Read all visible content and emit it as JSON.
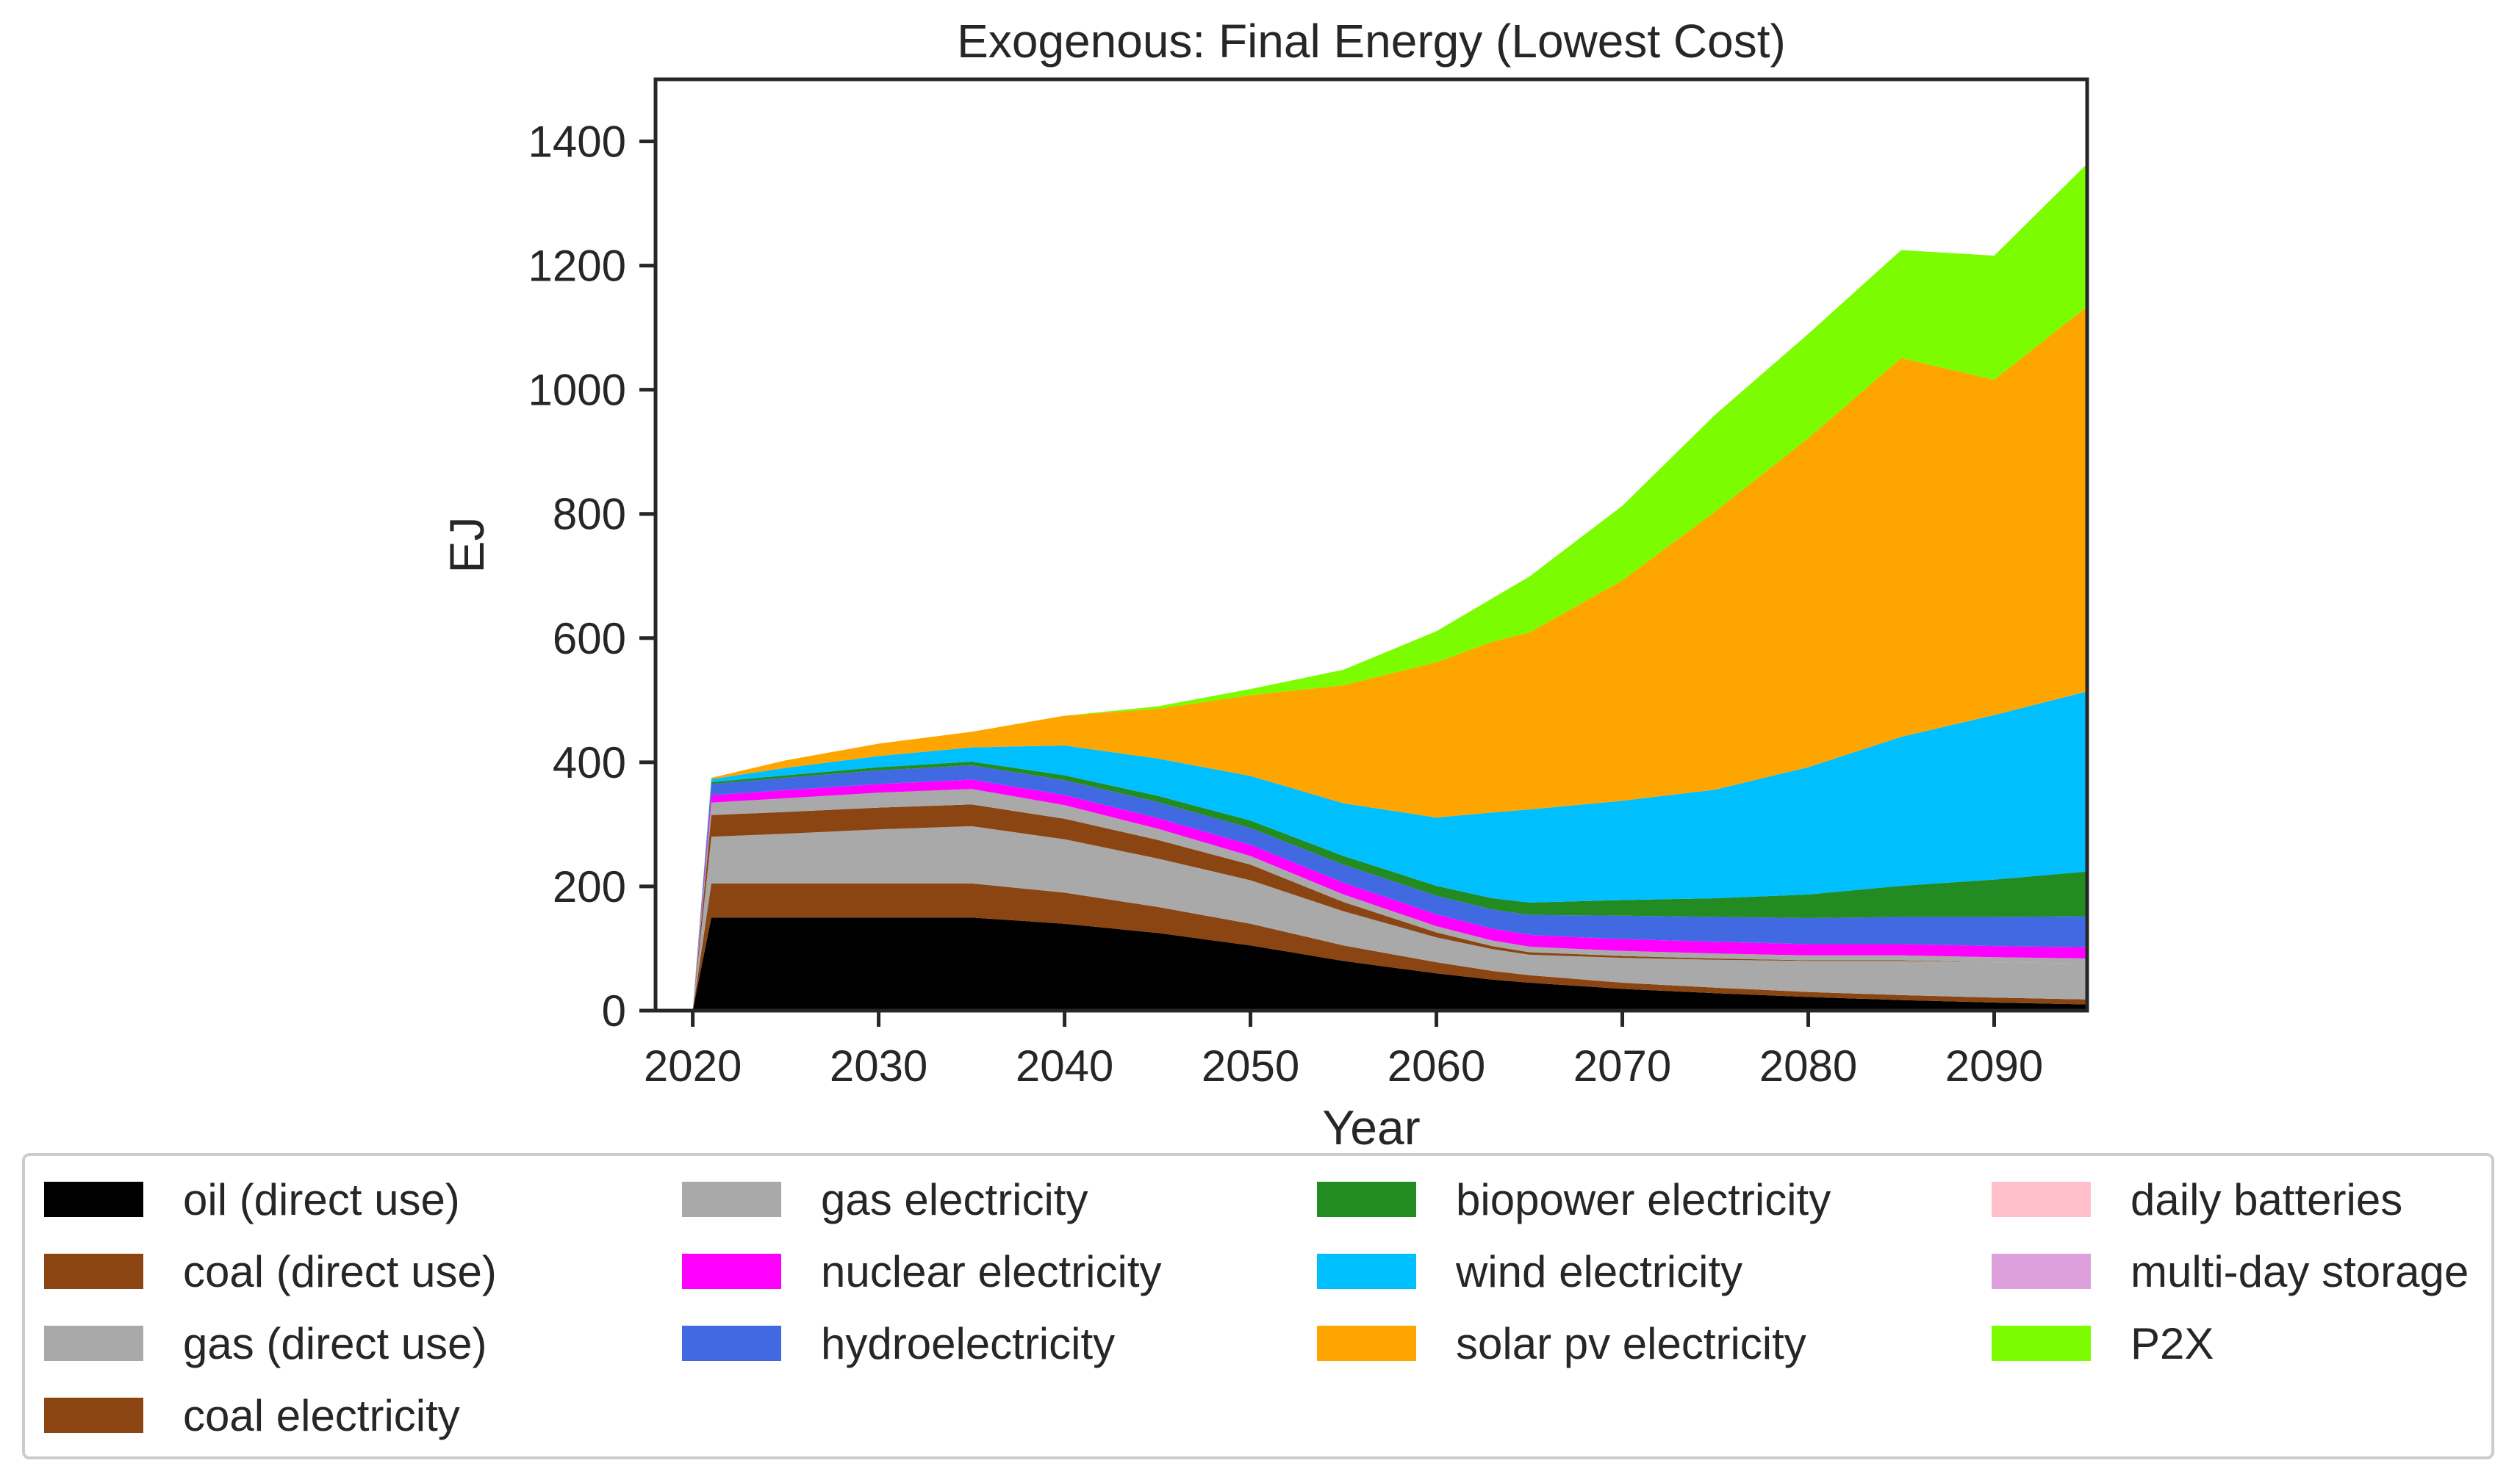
{
  "chart_data": {
    "type": "area",
    "title": "Exogenous: Final Energy (Lowest Cost)",
    "xlabel": "Year",
    "ylabel": "EJ",
    "xlim": [
      2018,
      2095
    ],
    "ylim": [
      0,
      1500
    ],
    "x_ticks": [
      2020,
      2030,
      2040,
      2050,
      2060,
      2070,
      2080,
      2090
    ],
    "y_ticks": [
      0,
      200,
      400,
      600,
      800,
      1000,
      1200,
      1400
    ],
    "x": [
      2020,
      2021,
      2025,
      2030,
      2035,
      2040,
      2045,
      2050,
      2055,
      2060,
      2063,
      2065,
      2070,
      2075,
      2080,
      2085,
      2090,
      2095
    ],
    "stacked": true,
    "legend_position": "below",
    "series": [
      {
        "name": "oil (direct use)",
        "color": "#000000",
        "values": [
          0,
          150,
          150,
          150,
          150,
          140,
          125,
          105,
          80,
          60,
          50,
          45,
          35,
          28,
          22,
          17,
          13,
          10
        ]
      },
      {
        "name": "coal (direct use)",
        "color": "#8B4513",
        "values": [
          0,
          55,
          55,
          55,
          55,
          50,
          42,
          35,
          25,
          18,
          14,
          12,
          10,
          9,
          8,
          8,
          8,
          8
        ]
      },
      {
        "name": "gas (direct use)",
        "color": "#A9A9A9",
        "values": [
          0,
          75,
          80,
          87,
          92,
          86,
          78,
          70,
          55,
          40,
          35,
          33,
          40,
          45,
          50,
          55,
          57,
          58
        ]
      },
      {
        "name": "coal electricity",
        "color": "#8B4513",
        "values": [
          0,
          35,
          35,
          35,
          35,
          33,
          30,
          25,
          15,
          8,
          5,
          4,
          3,
          2,
          1,
          1,
          0,
          0
        ]
      },
      {
        "name": "gas electricity",
        "color": "#A9A9A9",
        "values": [
          0,
          20,
          22,
          24,
          25,
          22,
          18,
          14,
          12,
          10,
          9,
          9,
          8,
          8,
          8,
          8,
          8,
          8
        ]
      },
      {
        "name": "nuclear electricity",
        "color": "#FF00FF",
        "values": [
          0,
          12,
          13,
          14,
          15,
          16,
          17,
          18,
          19,
          19,
          19,
          19,
          19,
          19,
          18,
          18,
          18,
          18
        ]
      },
      {
        "name": "hydroelectricity",
        "color": "#4169E1",
        "values": [
          0,
          18,
          20,
          22,
          23,
          24,
          26,
          27,
          29,
          30,
          31,
          32,
          38,
          40,
          42,
          44,
          47,
          50
        ]
      },
      {
        "name": "biopower electricity",
        "color": "#228B22",
        "values": [
          0,
          3,
          4,
          5,
          6,
          8,
          10,
          12,
          14,
          16,
          18,
          20,
          25,
          30,
          38,
          50,
          60,
          72
        ]
      },
      {
        "name": "wind electricity",
        "color": "#00BFFF",
        "values": [
          0,
          5,
          12,
          18,
          23,
          48,
          60,
          72,
          85,
          110,
          138,
          150,
          160,
          175,
          205,
          240,
          265,
          290
        ]
      },
      {
        "name": "solar pv electricity",
        "color": "#FFA500",
        "values": [
          0,
          2,
          12,
          20,
          25,
          48,
          80,
          130,
          190,
          250,
          275,
          285,
          355,
          448,
          530,
          610,
          540,
          620
        ]
      },
      {
        "name": "daily batteries",
        "color": "#FFC0CB",
        "values": [
          0,
          0,
          0,
          0,
          0,
          0,
          0,
          0,
          0,
          0,
          0,
          0,
          0,
          0,
          0,
          0,
          0,
          0
        ]
      },
      {
        "name": "multi-day storage",
        "color": "#DDA0DD",
        "values": [
          0,
          0,
          0,
          0,
          0,
          0,
          0,
          0,
          0,
          0,
          0,
          0,
          0,
          0,
          0,
          0,
          0,
          0
        ]
      },
      {
        "name": "P2X",
        "color": "#7CFC00",
        "values": [
          0,
          0,
          0,
          0,
          0,
          0,
          4,
          10,
          25,
          50,
          70,
          90,
          120,
          156,
          168,
          174,
          200,
          230
        ]
      }
    ]
  }
}
